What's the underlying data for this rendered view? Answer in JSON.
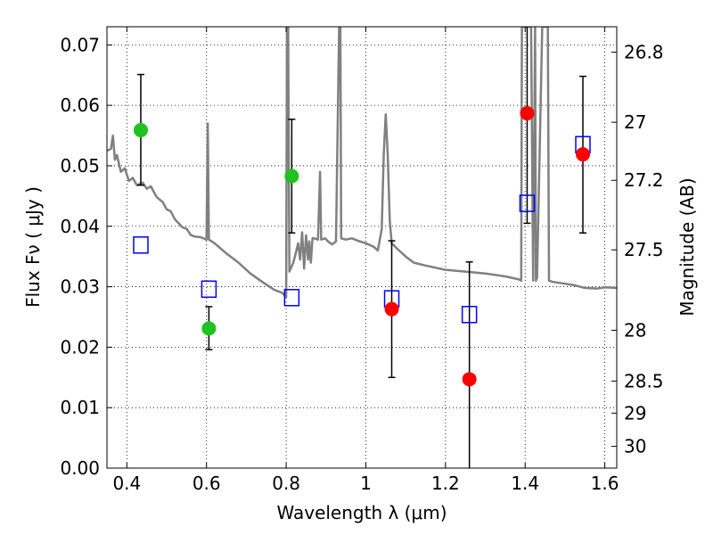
{
  "chart_data": {
    "type": "scatter",
    "xlabel": "Wavelength  λ (μm)",
    "ylabel": "Flux  Fν  ( μJy )",
    "y2label": "Magnitude (AB)",
    "xlim": [
      0.35,
      1.63
    ],
    "ylim": [
      0.0,
      0.073
    ],
    "grid": true,
    "x_ticks": [
      0.4,
      0.6,
      0.8,
      1.0,
      1.2,
      1.4,
      1.6
    ],
    "x_tick_labels": [
      "0.4",
      "0.6",
      "0.8",
      "1",
      "1.2",
      "1.4",
      "1.6"
    ],
    "y_ticks": [
      0.0,
      0.01,
      0.02,
      0.03,
      0.04,
      0.05,
      0.06,
      0.07
    ],
    "y_tick_labels": [
      "0.00",
      "0.01",
      "0.02",
      "0.03",
      "0.04",
      "0.05",
      "0.06",
      "0.07"
    ],
    "y2_ticks": [
      {
        "label": "26.8",
        "flux": 0.0688
      },
      {
        "label": "27",
        "flux": 0.0572
      },
      {
        "label": "27.2",
        "flux": 0.0476
      },
      {
        "label": "27.5",
        "flux": 0.0361
      },
      {
        "label": "28",
        "flux": 0.0228
      },
      {
        "label": "28.5",
        "flux": 0.0144
      },
      {
        "label": "29",
        "flux": 0.0091
      },
      {
        "label": "30",
        "flux": 0.0036
      }
    ],
    "series": [
      {
        "marker": "circle",
        "color": "#1fc21f",
        "points": [
          {
            "x": 0.435,
            "y": 0.0559,
            "ylow": 0.0468,
            "yhigh": 0.0651
          },
          {
            "x": 0.606,
            "y": 0.0231,
            "ylow": 0.0196,
            "yhigh": 0.0267
          },
          {
            "x": 0.814,
            "y": 0.0483,
            "ylow": 0.0389,
            "yhigh": 0.0577
          }
        ]
      },
      {
        "marker": "circle",
        "color": "#ff0000",
        "points": [
          {
            "x": 1.065,
            "y": 0.0263,
            "ylow": 0.015,
            "yhigh": 0.0376
          },
          {
            "x": 1.26,
            "y": 0.0147,
            "ylow": 0.0,
            "yhigh": 0.0341
          },
          {
            "x": 1.405,
            "y": 0.0587,
            "ylow": 0.0405,
            "yhigh": 0.073
          },
          {
            "x": 1.545,
            "y": 0.0519,
            "ylow": 0.0389,
            "yhigh": 0.0648
          }
        ]
      },
      {
        "marker": "open-square",
        "color": "#0000ff",
        "points": [
          {
            "x": 0.435,
            "y": 0.0369
          },
          {
            "x": 0.606,
            "y": 0.0296
          },
          {
            "x": 0.814,
            "y": 0.0282
          },
          {
            "x": 1.065,
            "y": 0.028
          },
          {
            "x": 1.26,
            "y": 0.0254
          },
          {
            "x": 1.405,
            "y": 0.0438
          },
          {
            "x": 1.545,
            "y": 0.0535
          }
        ]
      },
      {
        "marker": "line",
        "color": "#808080",
        "points": [
          [
            0.35,
            0.0525
          ],
          [
            0.36,
            0.0528
          ],
          [
            0.365,
            0.055
          ],
          [
            0.37,
            0.051
          ],
          [
            0.375,
            0.0518
          ],
          [
            0.385,
            0.049
          ],
          [
            0.395,
            0.0496
          ],
          [
            0.405,
            0.0475
          ],
          [
            0.415,
            0.048
          ],
          [
            0.425,
            0.0468
          ],
          [
            0.44,
            0.0472
          ],
          [
            0.45,
            0.0462
          ],
          [
            0.46,
            0.0466
          ],
          [
            0.475,
            0.0448
          ],
          [
            0.49,
            0.044
          ],
          [
            0.5,
            0.0428
          ],
          [
            0.51,
            0.0425
          ],
          [
            0.52,
            0.0412
          ],
          [
            0.53,
            0.0405
          ],
          [
            0.54,
            0.0398
          ],
          [
            0.55,
            0.0396
          ],
          [
            0.56,
            0.0386
          ],
          [
            0.57,
            0.0383
          ],
          [
            0.585,
            0.0382
          ],
          [
            0.6,
            0.0378
          ],
          [
            0.603,
            0.057
          ],
          [
            0.606,
            0.0378
          ],
          [
            0.62,
            0.0372
          ],
          [
            0.65,
            0.0355
          ],
          [
            0.68,
            0.034
          ],
          [
            0.71,
            0.0322
          ],
          [
            0.74,
            0.0308
          ],
          [
            0.77,
            0.0295
          ],
          [
            0.79,
            0.029
          ],
          [
            0.8,
            0.0283
          ],
          [
            0.802,
            0.073
          ],
          [
            0.805,
            0.073
          ],
          [
            0.808,
            0.0325
          ],
          [
            0.818,
            0.034
          ],
          [
            0.825,
            0.0358
          ],
          [
            0.83,
            0.0372
          ],
          [
            0.835,
            0.0345
          ],
          [
            0.84,
            0.039
          ],
          [
            0.845,
            0.033
          ],
          [
            0.85,
            0.0385
          ],
          [
            0.855,
            0.0345
          ],
          [
            0.858,
            0.0375
          ],
          [
            0.862,
            0.034
          ],
          [
            0.866,
            0.038
          ],
          [
            0.87,
            0.038
          ],
          [
            0.88,
            0.0378
          ],
          [
            0.885,
            0.049
          ],
          [
            0.888,
            0.0378
          ],
          [
            0.898,
            0.038
          ],
          [
            0.905,
            0.0375
          ],
          [
            0.915,
            0.037
          ],
          [
            0.925,
            0.0375
          ],
          [
            0.933,
            0.073
          ],
          [
            0.936,
            0.073
          ],
          [
            0.938,
            0.038
          ],
          [
            0.95,
            0.0378
          ],
          [
            0.965,
            0.038
          ],
          [
            0.98,
            0.0376
          ],
          [
            1.0,
            0.0372
          ],
          [
            1.02,
            0.0366
          ],
          [
            1.03,
            0.036
          ],
          [
            1.04,
            0.0395
          ],
          [
            1.045,
            0.052
          ],
          [
            1.05,
            0.0585
          ],
          [
            1.055,
            0.052
          ],
          [
            1.06,
            0.041
          ],
          [
            1.065,
            0.0372
          ],
          [
            1.08,
            0.0362
          ],
          [
            1.1,
            0.035
          ],
          [
            1.12,
            0.034
          ],
          [
            1.15,
            0.0335
          ],
          [
            1.2,
            0.0328
          ],
          [
            1.25,
            0.0325
          ],
          [
            1.3,
            0.0322
          ],
          [
            1.35,
            0.0317
          ],
          [
            1.385,
            0.0312
          ],
          [
            1.39,
            0.031
          ],
          [
            1.392,
            0.073
          ],
          [
            1.4,
            0.073
          ],
          [
            1.415,
            0.073
          ],
          [
            1.42,
            0.031
          ],
          [
            1.425,
            0.073
          ],
          [
            1.427,
            0.031
          ],
          [
            1.43,
            0.0315
          ],
          [
            1.443,
            0.073
          ],
          [
            1.457,
            0.073
          ],
          [
            1.46,
            0.031
          ],
          [
            1.47,
            0.0308
          ],
          [
            1.5,
            0.0305
          ],
          [
            1.52,
            0.0303
          ],
          [
            1.55,
            0.0298
          ],
          [
            1.58,
            0.0297
          ],
          [
            1.6,
            0.0299
          ],
          [
            1.63,
            0.0298
          ]
        ]
      }
    ]
  }
}
